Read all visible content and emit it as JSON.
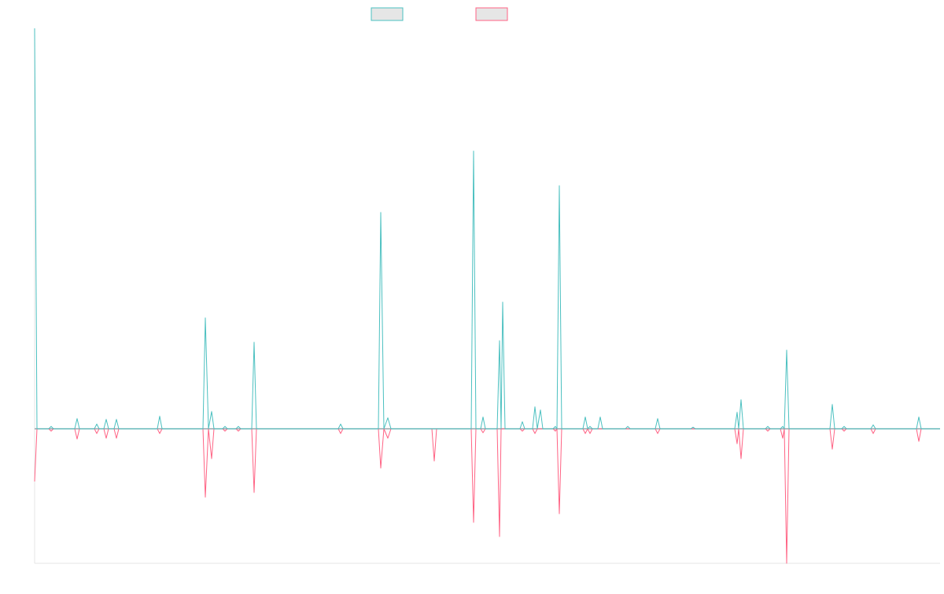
{
  "chart_data": {
    "type": "line",
    "x": [
      0,
      3,
      18,
      21,
      24,
      51,
      54,
      57,
      76,
      79,
      82,
      88,
      91,
      94,
      101,
      104,
      107,
      156,
      159,
      162,
      214,
      217,
      221,
      225,
      228,
      239,
      242,
      245,
      256,
      259,
      262,
      276,
      279,
      282,
      386,
      389,
      392,
      437,
      440,
      444,
      449,
      453,
      505,
      508,
      511,
      555,
      558,
      561,
      567,
      570,
      573,
      588,
      591,
      593,
      595,
      598,
      617,
      620,
      623,
      633,
      636,
      639,
      643,
      646,
      659,
      662,
      664,
      667,
      670,
      697,
      700,
      703,
      706,
      709,
      716,
      719,
      722,
      751,
      754,
      757,
      789,
      792,
      795,
      834,
      837,
      840,
      890,
      893,
      895,
      898,
      901,
      929,
      932,
      935,
      948,
      951,
      953,
      956,
      959,
      1011,
      1014,
      1017,
      1026,
      1029,
      1032,
      1063,
      1066,
      1069,
      1121,
      1124,
      1127,
      1151
    ],
    "series": [
      {
        "color": "#ff6384",
        "values": [
          -67,
          0,
          0,
          -3,
          0,
          0,
          -13,
          0,
          0,
          -6,
          0,
          0,
          -12,
          0,
          0,
          -12,
          0,
          0,
          -6,
          0,
          0,
          -87,
          0,
          -38,
          0,
          0,
          -3,
          0,
          0,
          -3,
          0,
          0,
          -81,
          0,
          0,
          -6,
          0,
          0,
          -50,
          0,
          -12,
          0,
          0,
          -41,
          0,
          0,
          -119,
          0,
          0,
          -5,
          0,
          0,
          -137,
          0,
          0,
          0,
          0,
          -3,
          0,
          0,
          -6,
          0,
          0,
          0,
          0,
          -3,
          0,
          -108,
          0,
          0,
          -6,
          0,
          -6,
          0,
          0,
          0,
          0,
          0,
          0,
          0,
          0,
          -6,
          0,
          0,
          0,
          0,
          0,
          -19,
          0,
          -38,
          0,
          0,
          -3,
          0,
          0,
          -12,
          0,
          -171,
          0,
          0,
          -26,
          0,
          0,
          -3,
          0,
          0,
          -6,
          0,
          0,
          -16,
          0,
          0
        ]
      },
      {
        "color": "#4bc0c0",
        "values": [
          509,
          0,
          0,
          3,
          0,
          0,
          13,
          0,
          0,
          6,
          0,
          0,
          12,
          0,
          0,
          12,
          0,
          0,
          16,
          0,
          0,
          141,
          0,
          22,
          0,
          0,
          3,
          0,
          0,
          3,
          0,
          0,
          110,
          0,
          0,
          6,
          0,
          0,
          275,
          0,
          14,
          0,
          0,
          0,
          0,
          0,
          353,
          0,
          0,
          15,
          0,
          0,
          112,
          0,
          161,
          0,
          0,
          9,
          0,
          0,
          28,
          0,
          24,
          0,
          0,
          3,
          0,
          309,
          0,
          0,
          15,
          0,
          3,
          0,
          0,
          15,
          0,
          0,
          3,
          0,
          0,
          13,
          0,
          0,
          2,
          0,
          0,
          21,
          0,
          37,
          0,
          0,
          3,
          0,
          0,
          3,
          0,
          100,
          0,
          0,
          31,
          0,
          0,
          3,
          0,
          0,
          5,
          0,
          0,
          15,
          0,
          0
        ]
      }
    ],
    "xlim": [
      0,
      1151
    ],
    "ylim": [
      -171,
      509
    ],
    "grid": false
  }
}
